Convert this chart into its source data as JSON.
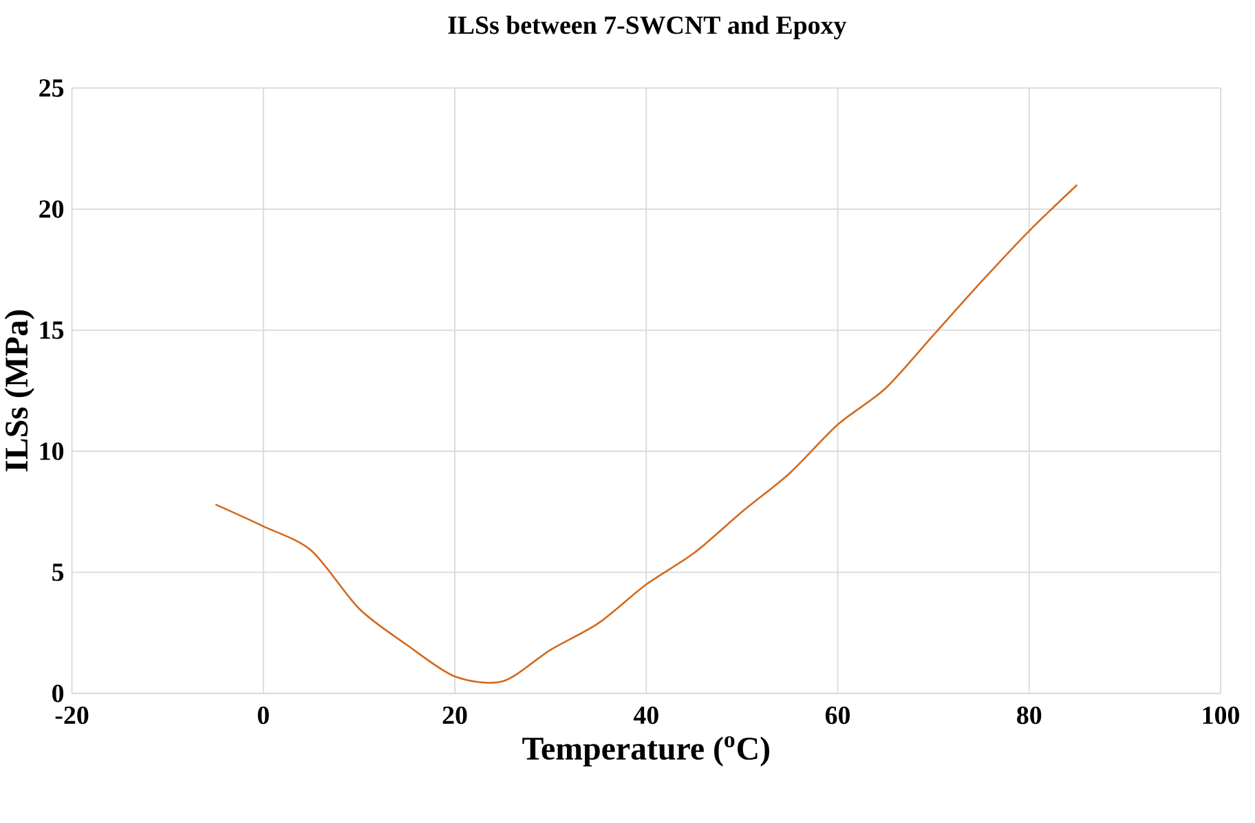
{
  "chart_data": {
    "type": "line",
    "title": "ILSs between 7-SWCNT and Epoxy",
    "xlabel": "Temperature ($^{o}$C)",
    "ylabel": "ILSs (MPa)",
    "x": [
      -5,
      0,
      5,
      10,
      15,
      20,
      25,
      30,
      35,
      40,
      45,
      50,
      55,
      60,
      65,
      70,
      75,
      80,
      85
    ],
    "series": [
      {
        "color": "#d2691e",
        "values": [
          7.8,
          6.9,
          5.9,
          3.5,
          2.0,
          0.7,
          0.5,
          1.8,
          2.9,
          4.5,
          5.8,
          7.5,
          9.1,
          11.1,
          12.6,
          14.8,
          17.0,
          19.1,
          21.0
        ]
      }
    ],
    "xlim": [
      -20,
      100
    ],
    "ylim": [
      0,
      25
    ],
    "xticks": [
      -20,
      0,
      20,
      40,
      60,
      80,
      100
    ],
    "yticks": [
      0,
      5,
      10,
      15,
      20,
      25
    ],
    "grid": true,
    "line_style": "solid"
  }
}
